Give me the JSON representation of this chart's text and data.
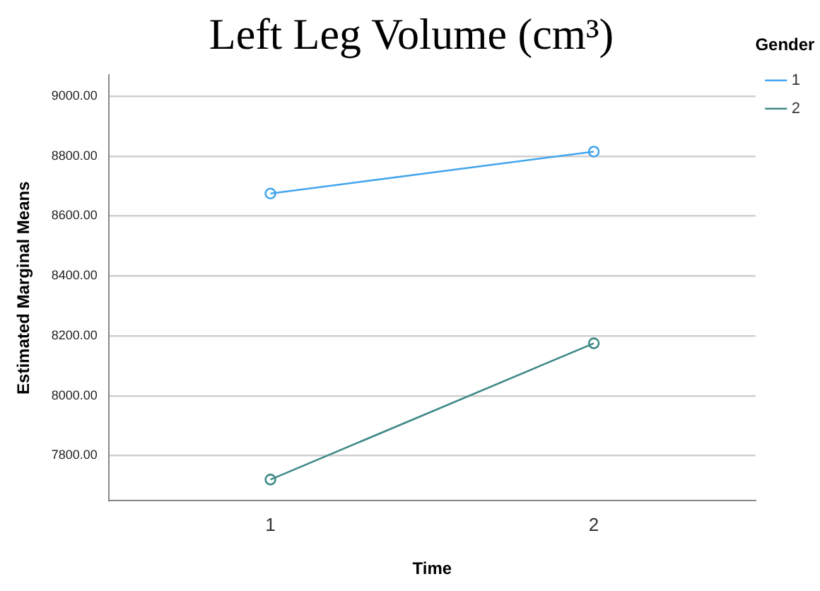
{
  "chart_data": {
    "type": "line",
    "title": "Left Leg Volume (cm³)",
    "xlabel": "Time",
    "ylabel": "Estimated Marginal Means",
    "legend_title": "Gender",
    "categories": [
      "1",
      "2"
    ],
    "series": [
      {
        "name": "1",
        "color": "#42a5ec",
        "values": [
          8675,
          8815
        ]
      },
      {
        "name": "2",
        "color": "#3f8a87",
        "values": [
          7720,
          8175
        ]
      }
    ],
    "ylim": [
      7650,
      9070
    ],
    "yticks": [
      {
        "value": 7800,
        "label": "7800.00"
      },
      {
        "value": 8000,
        "label": "8000.00"
      },
      {
        "value": 8200,
        "label": "8200.00"
      },
      {
        "value": 8400,
        "label": "8400.00"
      },
      {
        "value": 8600,
        "label": "8600.00"
      },
      {
        "value": 8800,
        "label": "8800.00"
      },
      {
        "value": 9000,
        "label": "9000.00"
      }
    ],
    "grid": "y",
    "legend": "top right",
    "marker": "circle",
    "line_style": "solid"
  }
}
